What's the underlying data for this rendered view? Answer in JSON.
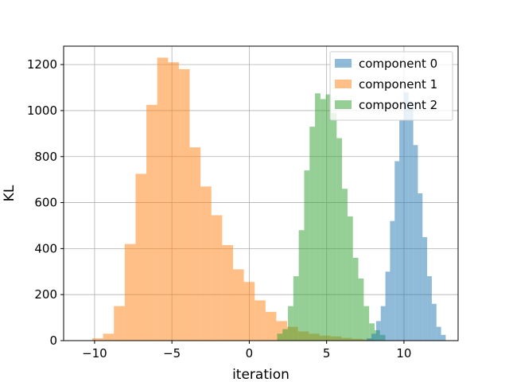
{
  "chart_data": {
    "type": "histogram",
    "title": "",
    "xlabel": "iteration",
    "ylabel": "KL",
    "xlim": [
      -12.0,
      13.5
    ],
    "ylim": [
      0,
      1280
    ],
    "xticks": [
      -10,
      -5,
      0,
      5,
      10
    ],
    "xtick_labels": [
      "−10",
      "−5",
      "0",
      "5",
      "10"
    ],
    "yticks": [
      0,
      200,
      400,
      600,
      800,
      1000,
      1200
    ],
    "grid": true,
    "legend": {
      "placement": "top-right"
    },
    "series": [
      {
        "name": "component 1",
        "color": "#ff7f0e",
        "alpha": 0.5,
        "bins": [
          {
            "x0": -10.15,
            "x1": -9.45,
            "y": 10
          },
          {
            "x0": -9.45,
            "x1": -8.75,
            "y": 30
          },
          {
            "x0": -8.75,
            "x1": -8.05,
            "y": 150
          },
          {
            "x0": -8.05,
            "x1": -7.35,
            "y": 420
          },
          {
            "x0": -7.35,
            "x1": -6.65,
            "y": 725
          },
          {
            "x0": -6.65,
            "x1": -5.95,
            "y": 1025
          },
          {
            "x0": -5.95,
            "x1": -5.25,
            "y": 1230
          },
          {
            "x0": -5.25,
            "x1": -4.55,
            "y": 1210
          },
          {
            "x0": -4.55,
            "x1": -3.85,
            "y": 1180
          },
          {
            "x0": -3.85,
            "x1": -3.15,
            "y": 840
          },
          {
            "x0": -3.15,
            "x1": -2.45,
            "y": 670
          },
          {
            "x0": -2.45,
            "x1": -1.75,
            "y": 545
          },
          {
            "x0": -1.75,
            "x1": -1.05,
            "y": 415
          },
          {
            "x0": -1.05,
            "x1": -0.35,
            "y": 310
          },
          {
            "x0": -0.35,
            "x1": 0.35,
            "y": 255
          },
          {
            "x0": 0.35,
            "x1": 1.05,
            "y": 175
          },
          {
            "x0": 1.05,
            "x1": 1.75,
            "y": 125
          },
          {
            "x0": 1.75,
            "x1": 2.45,
            "y": 85
          },
          {
            "x0": 2.45,
            "x1": 3.15,
            "y": 60
          },
          {
            "x0": 3.15,
            "x1": 3.85,
            "y": 40
          },
          {
            "x0": 3.85,
            "x1": 4.55,
            "y": 30
          },
          {
            "x0": 4.55,
            "x1": 5.25,
            "y": 22
          },
          {
            "x0": 5.25,
            "x1": 5.95,
            "y": 18
          },
          {
            "x0": 5.95,
            "x1": 6.65,
            "y": 12
          },
          {
            "x0": 6.65,
            "x1": 7.35,
            "y": 8
          },
          {
            "x0": 7.35,
            "x1": 8.05,
            "y": 5
          }
        ]
      },
      {
        "name": "component 2",
        "color": "#2ca02c",
        "alpha": 0.5,
        "bins": [
          {
            "x0": 1.8,
            "x1": 2.15,
            "y": 30
          },
          {
            "x0": 2.15,
            "x1": 2.5,
            "y": 50
          },
          {
            "x0": 2.5,
            "x1": 2.85,
            "y": 150
          },
          {
            "x0": 2.85,
            "x1": 3.2,
            "y": 280
          },
          {
            "x0": 3.2,
            "x1": 3.55,
            "y": 480
          },
          {
            "x0": 3.55,
            "x1": 3.9,
            "y": 740
          },
          {
            "x0": 3.9,
            "x1": 4.25,
            "y": 930
          },
          {
            "x0": 4.25,
            "x1": 4.6,
            "y": 1075
          },
          {
            "x0": 4.6,
            "x1": 4.95,
            "y": 1050
          },
          {
            "x0": 4.95,
            "x1": 5.3,
            "y": 1070
          },
          {
            "x0": 5.3,
            "x1": 5.65,
            "y": 990
          },
          {
            "x0": 5.65,
            "x1": 6.0,
            "y": 880
          },
          {
            "x0": 6.0,
            "x1": 6.35,
            "y": 660
          },
          {
            "x0": 6.35,
            "x1": 6.7,
            "y": 540
          },
          {
            "x0": 6.7,
            "x1": 7.05,
            "y": 360
          },
          {
            "x0": 7.05,
            "x1": 7.4,
            "y": 270
          },
          {
            "x0": 7.4,
            "x1": 7.75,
            "y": 150
          },
          {
            "x0": 7.75,
            "x1": 8.1,
            "y": 75
          },
          {
            "x0": 8.1,
            "x1": 8.45,
            "y": 45
          },
          {
            "x0": 8.45,
            "x1": 8.8,
            "y": 25
          }
        ]
      },
      {
        "name": "component 0",
        "color": "#1f77b4",
        "alpha": 0.5,
        "bins": [
          {
            "x0": 7.6,
            "x1": 7.9,
            "y": 10
          },
          {
            "x0": 7.9,
            "x1": 8.2,
            "y": 30
          },
          {
            "x0": 8.2,
            "x1": 8.5,
            "y": 85
          },
          {
            "x0": 8.5,
            "x1": 8.8,
            "y": 150
          },
          {
            "x0": 8.8,
            "x1": 9.1,
            "y": 300
          },
          {
            "x0": 9.1,
            "x1": 9.4,
            "y": 520
          },
          {
            "x0": 9.4,
            "x1": 9.7,
            "y": 780
          },
          {
            "x0": 9.7,
            "x1": 10.0,
            "y": 960
          },
          {
            "x0": 10.0,
            "x1": 10.3,
            "y": 1080
          },
          {
            "x0": 10.3,
            "x1": 10.6,
            "y": 1040
          },
          {
            "x0": 10.6,
            "x1": 10.9,
            "y": 850
          },
          {
            "x0": 10.9,
            "x1": 11.2,
            "y": 640
          },
          {
            "x0": 11.2,
            "x1": 11.5,
            "y": 450
          },
          {
            "x0": 11.5,
            "x1": 11.8,
            "y": 280
          },
          {
            "x0": 11.8,
            "x1": 12.1,
            "y": 160
          },
          {
            "x0": 12.1,
            "x1": 12.4,
            "y": 60
          },
          {
            "x0": 12.4,
            "x1": 12.7,
            "y": 25
          }
        ]
      }
    ],
    "legend_entries": [
      {
        "label": "component 0",
        "color": "#1f77b4"
      },
      {
        "label": "component 1",
        "color": "#ff7f0e"
      },
      {
        "label": "component 2",
        "color": "#2ca02c"
      }
    ]
  }
}
